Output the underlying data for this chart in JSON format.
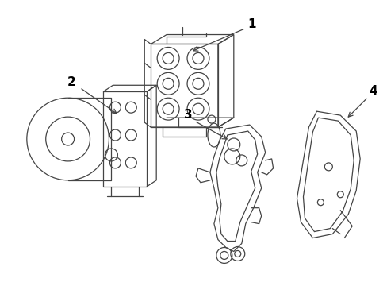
{
  "background_color": "#ffffff",
  "line_color": "#444444",
  "text_color": "#000000",
  "fig_width": 4.89,
  "fig_height": 3.6,
  "dpi": 100
}
